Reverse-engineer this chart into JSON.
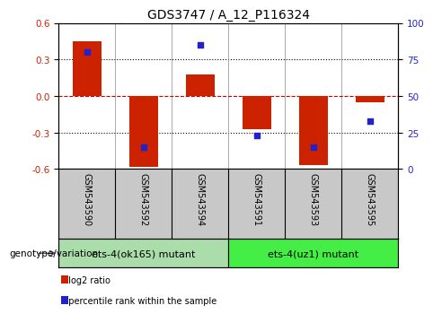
{
  "title": "GDS3747 / A_12_P116324",
  "samples": [
    "GSM543590",
    "GSM543592",
    "GSM543594",
    "GSM543591",
    "GSM543593",
    "GSM543595"
  ],
  "log2_ratios": [
    0.45,
    -0.58,
    0.18,
    -0.27,
    -0.57,
    -0.05
  ],
  "percentile_ranks": [
    80,
    15,
    85,
    23,
    15,
    33
  ],
  "ylim_left": [
    -0.6,
    0.6
  ],
  "ylim_right": [
    0,
    100
  ],
  "yticks_left": [
    -0.6,
    -0.3,
    0.0,
    0.3,
    0.6
  ],
  "yticks_right": [
    0,
    25,
    50,
    75,
    100
  ],
  "bar_color": "#cc2200",
  "dot_color": "#2222cc",
  "zero_line_color": "#cc0000",
  "groups": [
    {
      "label": "ets-4(ok165) mutant",
      "indices": [
        0,
        1,
        2
      ],
      "color": "#aaddaa"
    },
    {
      "label": "ets-4(uz1) mutant",
      "indices": [
        3,
        4,
        5
      ],
      "color": "#44ee44"
    }
  ],
  "group_label": "genotype/variation",
  "legend_items": [
    {
      "label": "log2 ratio",
      "color": "#cc2200"
    },
    {
      "label": "percentile rank within the sample",
      "color": "#2222cc"
    }
  ],
  "title_fontsize": 10,
  "tick_fontsize": 7.5,
  "sample_fontsize": 7,
  "group_fontsize": 8,
  "legend_fontsize": 7,
  "bg_xlabel": "#c8c8c8",
  "sep_color": "#888888",
  "bar_width": 0.5
}
